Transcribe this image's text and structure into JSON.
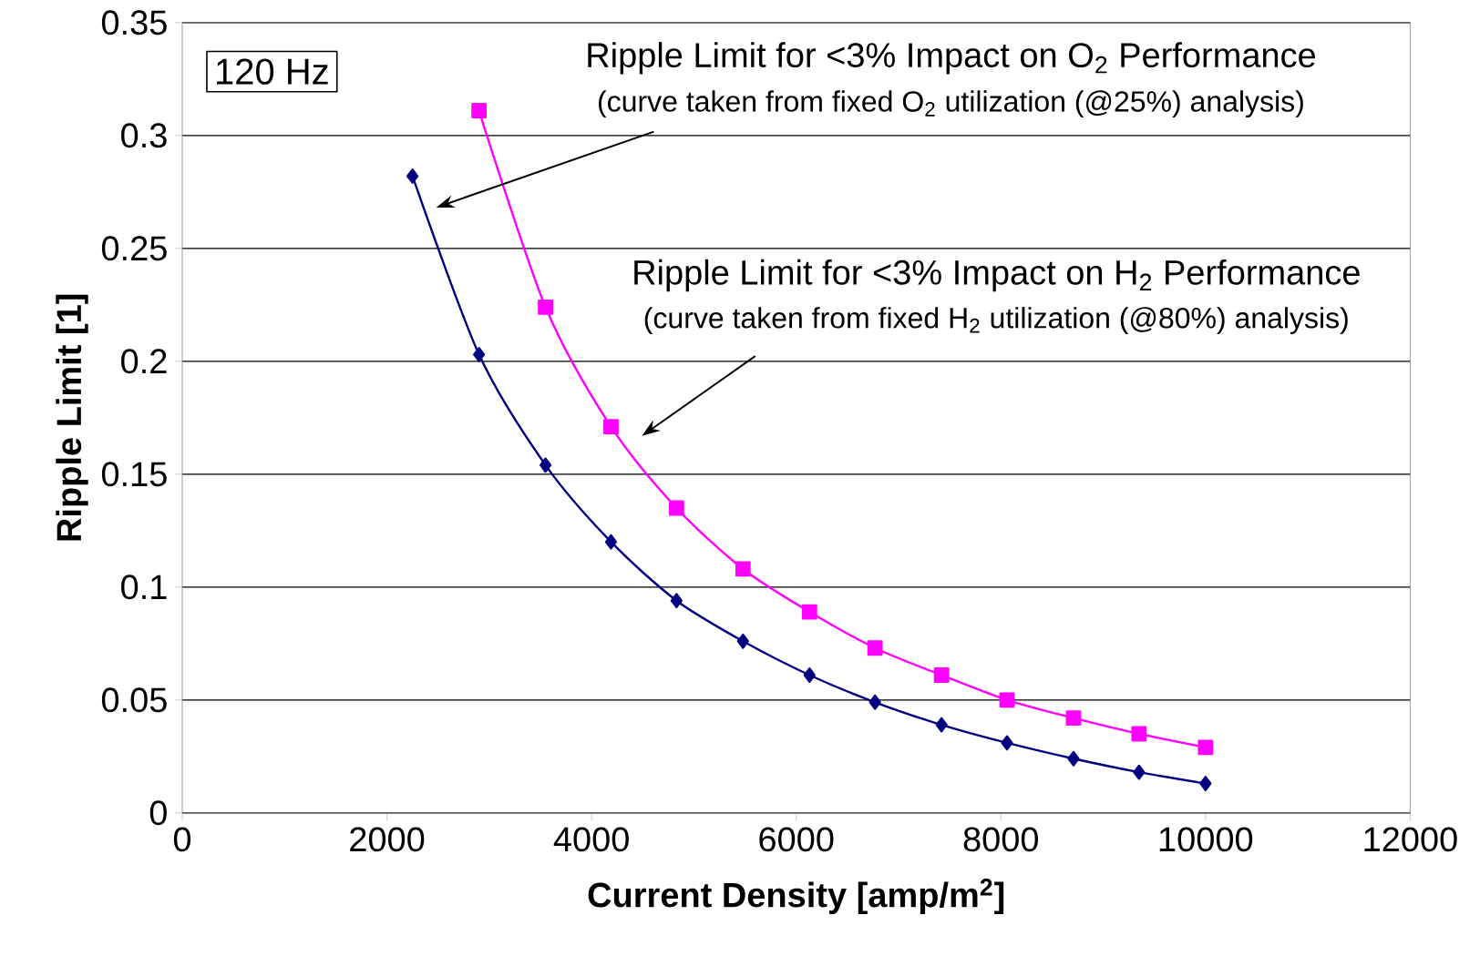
{
  "chart_data": {
    "type": "line",
    "xlabel": "Current Density [amp/m$^{2}$]",
    "ylabel": "Ripple Limit [1]",
    "xlim": [
      0,
      12000
    ],
    "xticks": [
      0,
      2000,
      4000,
      6000,
      8000,
      10000,
      12000
    ],
    "ylim": [
      0,
      0.35
    ],
    "yticks": [
      0,
      0.05,
      0.1,
      0.15,
      0.2,
      0.25,
      0.3,
      0.35
    ],
    "grid": "y",
    "series": [
      {
        "color": "#000080",
        "marker": "diamond",
        "x": [
          2250,
          2900,
          3550,
          4190,
          4830,
          5480,
          6130,
          6770,
          7420,
          8060,
          8710,
          9350,
          10000
        ],
        "values": [
          0.282,
          0.203,
          0.154,
          0.12,
          0.094,
          0.076,
          0.061,
          0.049,
          0.039,
          0.031,
          0.024,
          0.018,
          0.013
        ]
      },
      {
        "color": "#ff00ff",
        "marker": "square",
        "x": [
          2900,
          3550,
          4190,
          4830,
          5480,
          6130,
          6770,
          7420,
          8060,
          8710,
          9350,
          10000
        ],
        "values": [
          0.311,
          0.224,
          0.171,
          0.135,
          0.108,
          0.089,
          0.073,
          0.061,
          0.05,
          0.042,
          0.035,
          0.029
        ]
      }
    ],
    "annotations": [
      "120 Hz",
      "Ripple Limit for <3% Impact on O$_{2}$ Performance",
      "(curve taken from fixed O$_{2}$ utilization (@25%) analysis)",
      "Ripple Limit for <3% Impact on H$_{2}$ Performance",
      "(curve taken from fixed H$_{2}$ utilization (@80%) analysis)"
    ]
  }
}
